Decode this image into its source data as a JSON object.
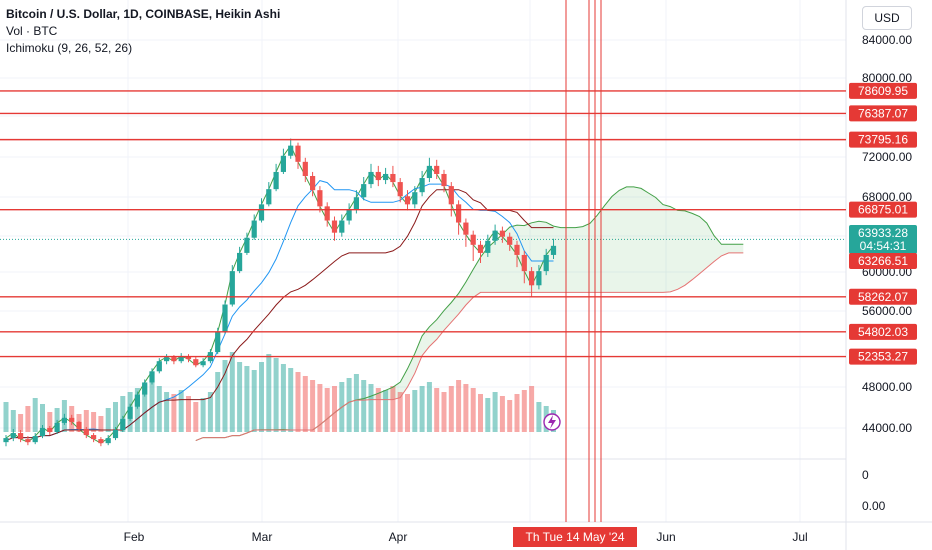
{
  "legend": {
    "title": "Bitcoin / U.S. Dollar, 1D, COINBASE, Heikin Ashi",
    "vol": "Vol · BTC",
    "ichimoku": "Ichimoku (9, 26, 52, 26)"
  },
  "currency_button": "USD",
  "colors": {
    "up": "#26a69a",
    "down": "#ef5350",
    "hline": "#e53935",
    "conversion": "#2196f3",
    "base": "#8b1a1a",
    "lagging": "#43a047",
    "lead_b": "#e57373",
    "cloud_up": "rgba(76,175,80,0.12)",
    "cloud_down": "rgba(239,83,80,0.12)"
  },
  "chart_data": {
    "type": "candlestick",
    "price_axis_ticks": [
      "84000.00",
      "80000.00",
      "76000.00",
      "72000.00",
      "68000.00",
      "64000.00",
      "60000.00",
      "56000.00",
      "48000.00",
      "44000.00"
    ],
    "volume_axis_ticks": [
      "0",
      "0.00"
    ],
    "time_axis_ticks": [
      "Feb",
      "Mar",
      "Apr",
      "Jun",
      "Jul"
    ],
    "time_axis_highlight": "Th   Tue 14 May '24",
    "horizontal_levels": [
      78609.95,
      76387.07,
      73795.16,
      66875.01,
      58262.07,
      54802.03,
      52353.27
    ],
    "horizontal_level_labels": [
      "78609.95",
      "76387.07",
      "73795.16",
      "66875.01",
      "58262.07",
      "54802.03",
      "52353.27"
    ],
    "current_price": "63933.28",
    "countdown": "04:54:31",
    "last_level": "63266.51",
    "ylim": [
      44000,
      86000
    ],
    "candles": [
      [
        43900,
        44300,
        43500,
        44600
      ],
      [
        44300,
        44800,
        44000,
        45200
      ],
      [
        44800,
        44200,
        43900,
        45100
      ],
      [
        44200,
        43900,
        43600,
        44500
      ],
      [
        43900,
        44500,
        43700,
        44800
      ],
      [
        44500,
        45300,
        44300,
        45600
      ],
      [
        45300,
        44900,
        44600,
        45500
      ],
      [
        44900,
        45800,
        44700,
        46100
      ],
      [
        45800,
        46300,
        45600,
        46700
      ],
      [
        46300,
        45900,
        45600,
        46600
      ],
      [
        45900,
        45200,
        44900,
        46000
      ],
      [
        45200,
        44600,
        44300,
        45400
      ],
      [
        44600,
        44200,
        43900,
        44800
      ],
      [
        44200,
        43800,
        43500,
        44400
      ],
      [
        43800,
        44300,
        43600,
        44600
      ],
      [
        44300,
        45100,
        44100,
        45400
      ],
      [
        45100,
        46200,
        44900,
        46500
      ],
      [
        46200,
        47400,
        46000,
        47700
      ],
      [
        47400,
        48600,
        47200,
        48900
      ],
      [
        48600,
        49800,
        48400,
        50100
      ],
      [
        49800,
        50900,
        49600,
        51200
      ],
      [
        50900,
        51900,
        50700,
        52200
      ],
      [
        51900,
        52300,
        51600,
        52600
      ],
      [
        52300,
        51900,
        51600,
        52500
      ],
      [
        51900,
        52400,
        51700,
        52700
      ],
      [
        52400,
        52100,
        51800,
        52600
      ],
      [
        52100,
        51500,
        51300,
        52300
      ],
      [
        51500,
        51900,
        51300,
        52200
      ],
      [
        51900,
        52800,
        51700,
        53100
      ],
      [
        52800,
        54800,
        52600,
        55200
      ],
      [
        54800,
        57500,
        54600,
        57900
      ],
      [
        57500,
        60800,
        57300,
        61400
      ],
      [
        60800,
        62600,
        60600,
        63200
      ],
      [
        62600,
        64100,
        62400,
        64600
      ],
      [
        64100,
        65800,
        63900,
        66400
      ],
      [
        65800,
        67400,
        65600,
        68000
      ],
      [
        67400,
        68900,
        67200,
        69600
      ],
      [
        68900,
        70600,
        68700,
        71400
      ],
      [
        70600,
        72200,
        70400,
        72900
      ],
      [
        72200,
        73200,
        71900,
        73900
      ],
      [
        73200,
        71600,
        70900,
        73500
      ],
      [
        71600,
        70200,
        69600,
        72000
      ],
      [
        70200,
        68800,
        68200,
        70600
      ],
      [
        68800,
        67200,
        66600,
        69200
      ],
      [
        67200,
        65800,
        65200,
        67600
      ],
      [
        65800,
        64600,
        63800,
        66200
      ],
      [
        64600,
        65800,
        64200,
        66400
      ],
      [
        65800,
        66900,
        65400,
        67500
      ],
      [
        66900,
        68100,
        66500,
        68800
      ],
      [
        68100,
        69400,
        67800,
        70100
      ],
      [
        69400,
        70600,
        69000,
        71400
      ],
      [
        70600,
        69800,
        69200,
        71200
      ],
      [
        69800,
        70400,
        69400,
        71000
      ],
      [
        70400,
        69600,
        69100,
        71200
      ],
      [
        69600,
        68200,
        67600,
        70000
      ],
      [
        68200,
        67400,
        66800,
        68800
      ],
      [
        67400,
        68600,
        67000,
        69200
      ],
      [
        68600,
        70000,
        68200,
        70700
      ],
      [
        70000,
        71200,
        69600,
        72000
      ],
      [
        71200,
        70400,
        69900,
        71800
      ],
      [
        70400,
        69200,
        68600,
        70800
      ],
      [
        69200,
        67400,
        66200,
        69600
      ],
      [
        67400,
        65600,
        64400,
        67800
      ],
      [
        65600,
        64400,
        63200,
        66000
      ],
      [
        64400,
        63400,
        61800,
        64800
      ],
      [
        63400,
        62600,
        61600,
        63800
      ],
      [
        62600,
        63800,
        62200,
        64400
      ],
      [
        63800,
        64800,
        63400,
        65400
      ],
      [
        64800,
        64200,
        63600,
        65200
      ],
      [
        64200,
        63400,
        62800,
        64600
      ],
      [
        63400,
        62400,
        61200,
        63800
      ],
      [
        62400,
        60800,
        59600,
        62800
      ],
      [
        60800,
        59400,
        58200,
        61200
      ],
      [
        59400,
        60800,
        59000,
        61400
      ],
      [
        60800,
        62400,
        60400,
        63000
      ],
      [
        62400,
        63300,
        62000,
        64000
      ]
    ],
    "volume": [
      30,
      22,
      18,
      26,
      34,
      28,
      20,
      24,
      32,
      26,
      18,
      22,
      20,
      16,
      24,
      30,
      36,
      40,
      44,
      48,
      52,
      46,
      40,
      38,
      42,
      36,
      30,
      34,
      40,
      60,
      72,
      80,
      70,
      66,
      62,
      70,
      78,
      74,
      68,
      64,
      60,
      56,
      52,
      48,
      44,
      46,
      50,
      54,
      58,
      52,
      48,
      44,
      42,
      46,
      40,
      38,
      42,
      46,
      50,
      44,
      40,
      46,
      52,
      48,
      44,
      38,
      34,
      40,
      36,
      32,
      38,
      42,
      46,
      30,
      26,
      22
    ],
    "lead_a": [],
    "note": ""
  }
}
